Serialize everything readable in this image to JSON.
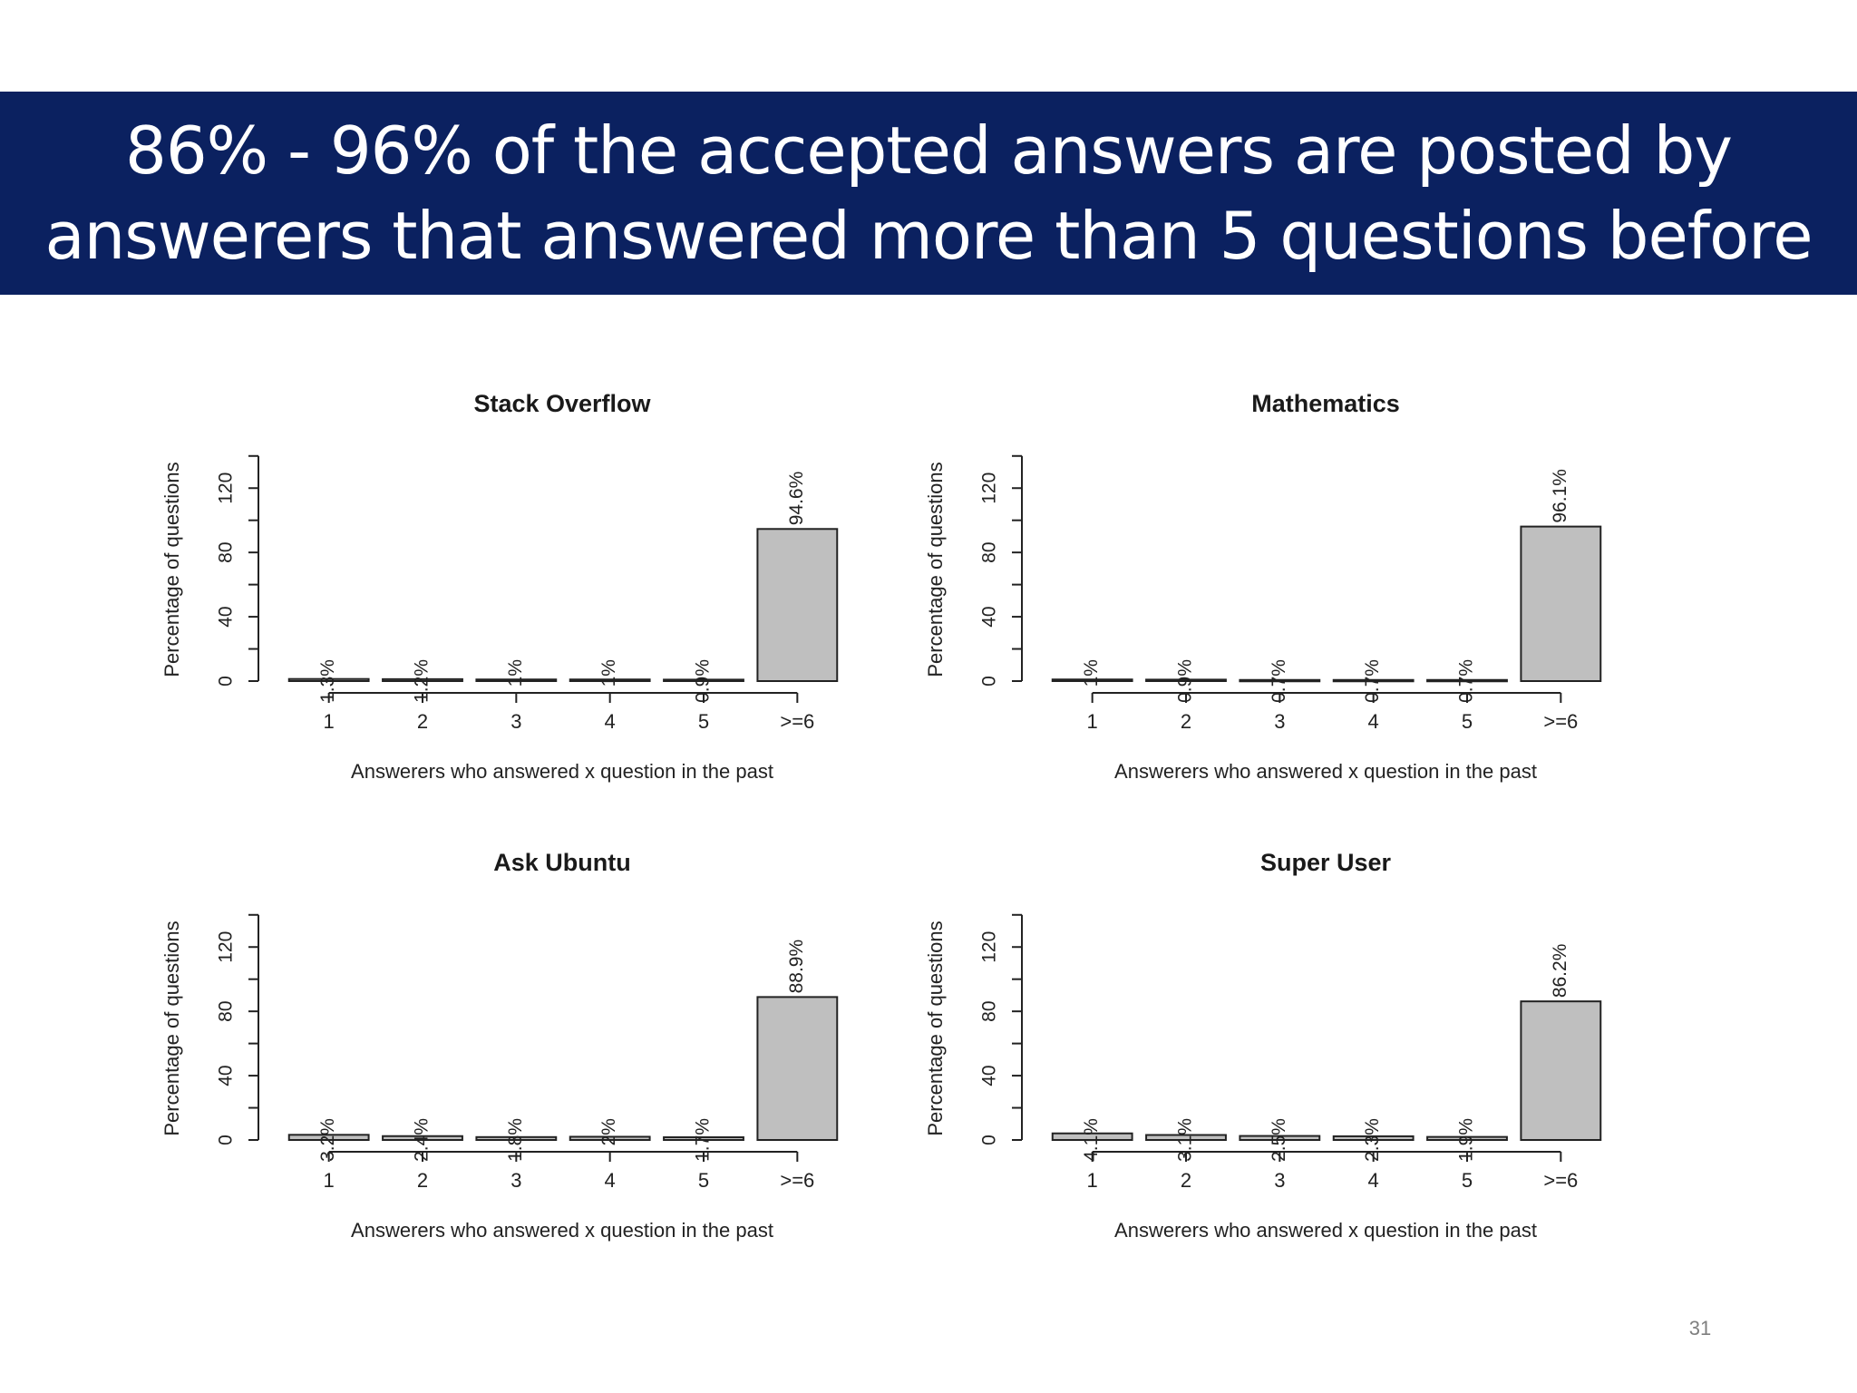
{
  "slide": {
    "title_lines": [
      "86% - 96% of the accepted answers are posted by",
      "answerers that answered more than 5 questions before"
    ],
    "page_number": "31"
  },
  "colors": {
    "banner": "#0b2160",
    "bar_fill": "#bfbfbf",
    "bar_stroke": "#222222"
  },
  "chart_data": [
    {
      "type": "bar",
      "title": "Stack Overflow",
      "xlabel": "Answerers who answered x question in the past",
      "ylabel": "Percentage of questions",
      "categories": [
        "1",
        "2",
        "3",
        "4",
        "5",
        ">=6"
      ],
      "values": [
        1.3,
        1.2,
        1.0,
        1.0,
        0.9,
        94.6
      ],
      "labels": [
        "1.3%",
        "1.2%",
        "1%",
        "1%",
        "0.9%",
        "94.6%"
      ],
      "ylim": [
        0,
        140
      ],
      "yticks": [
        0,
        40,
        80,
        120
      ],
      "grid": false,
      "legend": "none"
    },
    {
      "type": "bar",
      "title": "Mathematics",
      "xlabel": "Answerers who answered x question in the past",
      "ylabel": "Percentage of questions",
      "categories": [
        "1",
        "2",
        "3",
        "4",
        "5",
        ">=6"
      ],
      "values": [
        1.0,
        0.9,
        0.7,
        0.7,
        0.7,
        96.1
      ],
      "labels": [
        "1%",
        "0.9%",
        "0.7%",
        "0.7%",
        "0.7%",
        "96.1%"
      ],
      "ylim": [
        0,
        140
      ],
      "yticks": [
        0,
        40,
        80,
        120
      ],
      "grid": false,
      "legend": "none"
    },
    {
      "type": "bar",
      "title": "Ask Ubuntu",
      "xlabel": "Answerers who answered x question in the past",
      "ylabel": "Percentage of questions",
      "categories": [
        "1",
        "2",
        "3",
        "4",
        "5",
        ">=6"
      ],
      "values": [
        3.2,
        2.4,
        1.8,
        2.0,
        1.7,
        88.9
      ],
      "labels": [
        "3.2%",
        "2.4%",
        "1.8%",
        "2%",
        "1.7%",
        "88.9%"
      ],
      "ylim": [
        0,
        140
      ],
      "yticks": [
        0,
        40,
        80,
        120
      ],
      "grid": false,
      "legend": "none"
    },
    {
      "type": "bar",
      "title": "Super User",
      "xlabel": "Answerers who answered x question in the past",
      "ylabel": "Percentage of questions",
      "categories": [
        "1",
        "2",
        "3",
        "4",
        "5",
        ">=6"
      ],
      "values": [
        4.1,
        3.1,
        2.5,
        2.3,
        1.9,
        86.2
      ],
      "labels": [
        "4.1%",
        "3.1%",
        "2.5%",
        "2.3%",
        "1.9%",
        "86.2%"
      ],
      "ylim": [
        0,
        140
      ],
      "yticks": [
        0,
        40,
        80,
        120
      ],
      "grid": false,
      "legend": "none"
    }
  ]
}
